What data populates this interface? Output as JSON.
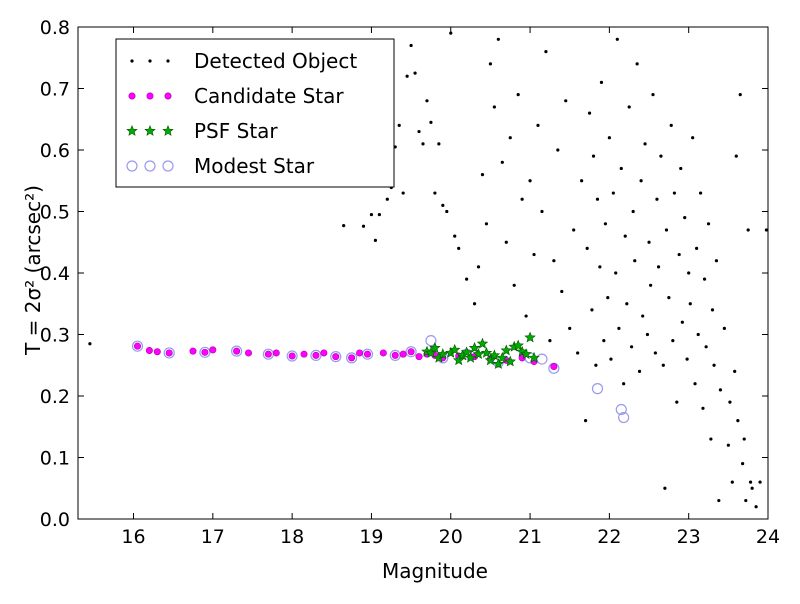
{
  "chart_data": {
    "type": "scatter",
    "title": "",
    "xlabel": "Magnitude",
    "ylabel": "T = 2σ² (arcsec²)",
    "xlim": [
      15.3,
      24.0
    ],
    "ylim": [
      0.0,
      0.8
    ],
    "x_ticks": [
      "16",
      "17",
      "18",
      "19",
      "20",
      "21",
      "22",
      "23",
      "24"
    ],
    "y_ticks": [
      "0.0",
      "0.1",
      "0.2",
      "0.3",
      "0.4",
      "0.5",
      "0.6",
      "0.7",
      "0.8"
    ],
    "grid": false,
    "legend_position": "top-left",
    "colors": {
      "detected": "#000000",
      "candidate": "#ff00ff",
      "psf": "#00aa00",
      "modest": "#9999ee"
    },
    "series": [
      {
        "name": "Detected Object",
        "marker": "dot",
        "points": [
          [
            15.45,
            0.285
          ],
          [
            18.65,
            0.477
          ],
          [
            18.9,
            0.476
          ],
          [
            19.0,
            0.495
          ],
          [
            19.05,
            0.453
          ],
          [
            19.1,
            0.495
          ],
          [
            19.2,
            0.52
          ],
          [
            19.25,
            0.539
          ],
          [
            19.3,
            0.605
          ],
          [
            19.35,
            0.64
          ],
          [
            19.4,
            0.53
          ],
          [
            19.45,
            0.72
          ],
          [
            19.5,
            0.77
          ],
          [
            19.55,
            0.725
          ],
          [
            19.6,
            0.63
          ],
          [
            19.65,
            0.61
          ],
          [
            19.7,
            0.68
          ],
          [
            19.75,
            0.645
          ],
          [
            19.8,
            0.53
          ],
          [
            19.85,
            0.61
          ],
          [
            19.9,
            0.51
          ],
          [
            19.95,
            0.5
          ],
          [
            20.0,
            0.79
          ],
          [
            20.05,
            0.46
          ],
          [
            20.1,
            0.44
          ],
          [
            20.2,
            0.39
          ],
          [
            20.3,
            0.35
          ],
          [
            20.35,
            0.41
          ],
          [
            20.4,
            0.56
          ],
          [
            20.45,
            0.48
          ],
          [
            20.5,
            0.74
          ],
          [
            20.55,
            0.67
          ],
          [
            20.6,
            0.78
          ],
          [
            20.65,
            0.58
          ],
          [
            20.7,
            0.45
          ],
          [
            20.75,
            0.62
          ],
          [
            20.8,
            0.38
          ],
          [
            20.85,
            0.69
          ],
          [
            20.9,
            0.52
          ],
          [
            20.95,
            0.33
          ],
          [
            21.0,
            0.55
          ],
          [
            21.05,
            0.43
          ],
          [
            21.1,
            0.64
          ],
          [
            21.15,
            0.5
          ],
          [
            21.2,
            0.76
          ],
          [
            21.25,
            0.29
          ],
          [
            21.3,
            0.42
          ],
          [
            21.35,
            0.6
          ],
          [
            21.4,
            0.37
          ],
          [
            21.45,
            0.68
          ],
          [
            21.5,
            0.31
          ],
          [
            21.55,
            0.47
          ],
          [
            21.6,
            0.27
          ],
          [
            21.65,
            0.55
          ],
          [
            21.7,
            0.16
          ],
          [
            21.72,
            0.44
          ],
          [
            21.75,
            0.66
          ],
          [
            21.78,
            0.34
          ],
          [
            21.8,
            0.59
          ],
          [
            21.83,
            0.25
          ],
          [
            21.85,
            0.52
          ],
          [
            21.88,
            0.41
          ],
          [
            21.9,
            0.71
          ],
          [
            21.93,
            0.29
          ],
          [
            21.95,
            0.48
          ],
          [
            21.98,
            0.36
          ],
          [
            22.0,
            0.62
          ],
          [
            22.02,
            0.26
          ],
          [
            22.05,
            0.53
          ],
          [
            22.08,
            0.4
          ],
          [
            22.1,
            0.78
          ],
          [
            22.12,
            0.31
          ],
          [
            22.15,
            0.57
          ],
          [
            22.18,
            0.22
          ],
          [
            22.2,
            0.46
          ],
          [
            22.22,
            0.35
          ],
          [
            22.25,
            0.67
          ],
          [
            22.28,
            0.28
          ],
          [
            22.3,
            0.5
          ],
          [
            22.32,
            0.42
          ],
          [
            22.35,
            0.74
          ],
          [
            22.38,
            0.24
          ],
          [
            22.4,
            0.55
          ],
          [
            22.42,
            0.33
          ],
          [
            22.45,
            0.61
          ],
          [
            22.48,
            0.3
          ],
          [
            22.5,
            0.45
          ],
          [
            22.52,
            0.38
          ],
          [
            22.55,
            0.69
          ],
          [
            22.58,
            0.27
          ],
          [
            22.6,
            0.52
          ],
          [
            22.62,
            0.41
          ],
          [
            22.65,
            0.59
          ],
          [
            22.68,
            0.25
          ],
          [
            22.7,
            0.05
          ],
          [
            22.72,
            0.47
          ],
          [
            22.75,
            0.36
          ],
          [
            22.78,
            0.64
          ],
          [
            22.8,
            0.29
          ],
          [
            22.82,
            0.53
          ],
          [
            22.85,
            0.19
          ],
          [
            22.88,
            0.43
          ],
          [
            22.9,
            0.57
          ],
          [
            22.92,
            0.32
          ],
          [
            22.95,
            0.49
          ],
          [
            22.98,
            0.26
          ],
          [
            23.0,
            0.4
          ],
          [
            23.02,
            0.35
          ],
          [
            23.05,
            0.62
          ],
          [
            23.08,
            0.22
          ],
          [
            23.1,
            0.44
          ],
          [
            23.12,
            0.3
          ],
          [
            23.15,
            0.53
          ],
          [
            23.18,
            0.18
          ],
          [
            23.2,
            0.39
          ],
          [
            23.22,
            0.28
          ],
          [
            23.25,
            0.48
          ],
          [
            23.28,
            0.13
          ],
          [
            23.3,
            0.34
          ],
          [
            23.32,
            0.25
          ],
          [
            23.35,
            0.42
          ],
          [
            23.38,
            0.03
          ],
          [
            23.4,
            0.21
          ],
          [
            23.45,
            0.31
          ],
          [
            23.5,
            0.12
          ],
          [
            23.52,
            0.19
          ],
          [
            23.55,
            0.06
          ],
          [
            23.58,
            0.24
          ],
          [
            23.6,
            0.59
          ],
          [
            23.62,
            0.16
          ],
          [
            23.65,
            0.69
          ],
          [
            23.68,
            0.09
          ],
          [
            23.7,
            0.13
          ],
          [
            23.72,
            0.03
          ],
          [
            23.75,
            0.47
          ],
          [
            23.78,
            0.06
          ],
          [
            23.8,
            0.05
          ],
          [
            23.85,
            0.02
          ],
          [
            23.9,
            0.06
          ],
          [
            23.98,
            0.47
          ]
        ]
      },
      {
        "name": "Candidate Star",
        "marker": "small-circle",
        "points": [
          [
            16.05,
            0.281
          ],
          [
            16.2,
            0.274
          ],
          [
            16.3,
            0.272
          ],
          [
            16.45,
            0.27
          ],
          [
            16.75,
            0.273
          ],
          [
            16.9,
            0.271
          ],
          [
            17.0,
            0.275
          ],
          [
            17.3,
            0.273
          ],
          [
            17.45,
            0.27
          ],
          [
            17.7,
            0.268
          ],
          [
            17.8,
            0.27
          ],
          [
            18.0,
            0.265
          ],
          [
            18.15,
            0.268
          ],
          [
            18.3,
            0.266
          ],
          [
            18.4,
            0.27
          ],
          [
            18.55,
            0.264
          ],
          [
            18.75,
            0.262
          ],
          [
            18.85,
            0.27
          ],
          [
            18.95,
            0.268
          ],
          [
            19.15,
            0.27
          ],
          [
            19.3,
            0.266
          ],
          [
            19.4,
            0.268
          ],
          [
            19.5,
            0.272
          ],
          [
            19.6,
            0.264
          ],
          [
            19.7,
            0.268
          ],
          [
            19.8,
            0.266
          ],
          [
            19.9,
            0.262
          ],
          [
            20.1,
            0.265
          ],
          [
            20.3,
            0.264
          ],
          [
            20.5,
            0.26
          ],
          [
            20.7,
            0.258
          ],
          [
            20.9,
            0.262
          ],
          [
            21.05,
            0.256
          ],
          [
            21.3,
            0.248
          ]
        ]
      },
      {
        "name": "PSF Star",
        "marker": "star",
        "points": [
          [
            19.7,
            0.272
          ],
          [
            19.75,
            0.27
          ],
          [
            19.8,
            0.278
          ],
          [
            19.85,
            0.262
          ],
          [
            19.9,
            0.268
          ],
          [
            20.0,
            0.27
          ],
          [
            20.05,
            0.275
          ],
          [
            20.1,
            0.258
          ],
          [
            20.15,
            0.266
          ],
          [
            20.2,
            0.271
          ],
          [
            20.25,
            0.262
          ],
          [
            20.3,
            0.278
          ],
          [
            20.35,
            0.268
          ],
          [
            20.4,
            0.285
          ],
          [
            20.45,
            0.27
          ],
          [
            20.5,
            0.258
          ],
          [
            20.55,
            0.266
          ],
          [
            20.6,
            0.252
          ],
          [
            20.65,
            0.262
          ],
          [
            20.7,
            0.274
          ],
          [
            20.75,
            0.256
          ],
          [
            20.8,
            0.28
          ],
          [
            20.85,
            0.282
          ],
          [
            20.9,
            0.272
          ],
          [
            20.95,
            0.268
          ],
          [
            21.0,
            0.295
          ],
          [
            21.05,
            0.262
          ]
        ]
      },
      {
        "name": "Modest Star",
        "marker": "open-circle",
        "points": [
          [
            16.05,
            0.281
          ],
          [
            16.45,
            0.27
          ],
          [
            16.9,
            0.271
          ],
          [
            17.3,
            0.273
          ],
          [
            17.7,
            0.268
          ],
          [
            18.0,
            0.265
          ],
          [
            18.3,
            0.266
          ],
          [
            18.55,
            0.264
          ],
          [
            18.75,
            0.262
          ],
          [
            18.95,
            0.268
          ],
          [
            19.3,
            0.266
          ],
          [
            19.5,
            0.272
          ],
          [
            19.75,
            0.29
          ],
          [
            19.9,
            0.262
          ],
          [
            20.2,
            0.268
          ],
          [
            20.6,
            0.255
          ],
          [
            21.0,
            0.262
          ],
          [
            21.15,
            0.26
          ],
          [
            21.3,
            0.245
          ],
          [
            21.85,
            0.212
          ],
          [
            22.15,
            0.178
          ],
          [
            22.18,
            0.165
          ]
        ]
      }
    ]
  }
}
